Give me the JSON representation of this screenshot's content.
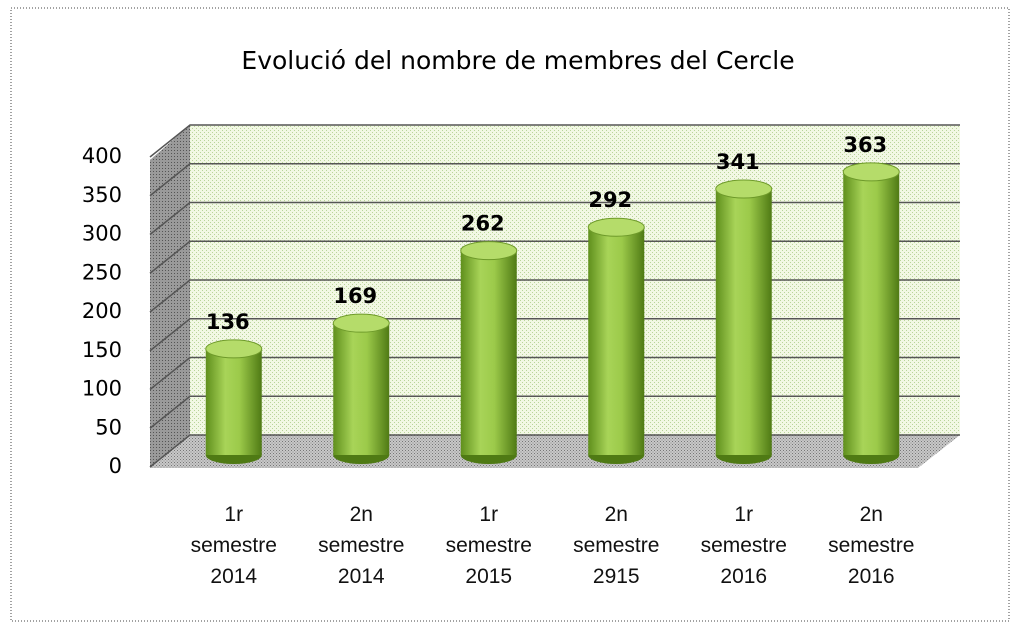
{
  "chart_data": {
    "type": "bar",
    "title": "Evolució del nombre de membres del Cercle",
    "categories": [
      "1r semestre 2014",
      "2n semestre 2014",
      "1r semestre 2015",
      "2n semestre 2915",
      "1r semestre 2016",
      "2n semestre 2016"
    ],
    "values": [
      136,
      169,
      262,
      292,
      341,
      363
    ],
    "color": "#8fbf3a",
    "ylim": [
      0,
      400
    ],
    "yticks": [
      0,
      50,
      100,
      150,
      200,
      250,
      300,
      350,
      400
    ],
    "grid": true
  }
}
